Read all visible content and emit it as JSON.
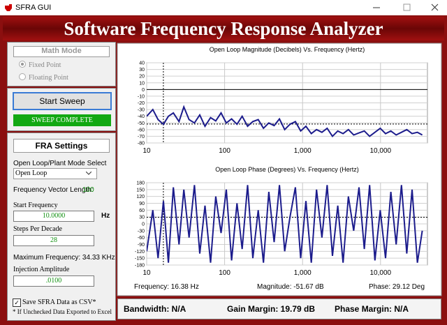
{
  "window": {
    "title": "SFRA GUI"
  },
  "header": {
    "title": "Software Frequency Response Analyzer"
  },
  "math_mode": {
    "title": "Math Mode",
    "options": [
      "Fixed Point",
      "Floating Point"
    ],
    "selected": 0
  },
  "sweep": {
    "button": "Start Sweep",
    "status": "SWEEP COMPLETE"
  },
  "fra_settings": {
    "title": "FRA Settings",
    "mode_label": "Open Loop/Plant Mode Select",
    "mode_value": "Open Loop",
    "freq_vector_label": "Frequency Vector Length:",
    "freq_vector_value": "100",
    "start_freq_label": "Start Frequency",
    "start_freq_value": "10.0000",
    "start_freq_unit": "Hz",
    "steps_label": "Steps Per Decade",
    "steps_value": "28",
    "max_freq": "Maximum Frequency: 34.33 KHz",
    "injection_label": "Injection Amplitude",
    "injection_value": ".0100",
    "save_csv_label": "Save SFRA Data as CSV*",
    "save_csv_checked": true,
    "note": "* If Unchecked Data Exported to Excel"
  },
  "chart_data": [
    {
      "type": "line",
      "title": "Open Loop Magnitude (Decibels) Vs. Frequency (Hertz)",
      "color": "#1c1c8c",
      "xlog": true,
      "grid": true,
      "x": [
        10,
        12,
        14,
        16.4,
        19,
        22,
        26,
        30,
        35,
        41,
        48,
        56,
        66,
        77,
        90,
        105,
        123,
        144,
        168,
        197,
        230,
        270,
        315,
        369,
        432,
        505,
        590,
        690,
        808,
        945,
        1105,
        1293,
        1512,
        1769,
        2069,
        2420,
        2831,
        3311,
        3873,
        4530,
        5299,
        6198,
        7250,
        8480,
        9919,
        11602,
        13571,
        15874,
        18568,
        21719,
        25405,
        29716,
        34330
      ],
      "values": [
        -40,
        -30,
        -45,
        -52,
        -40,
        -35,
        -48,
        -26,
        -45,
        -50,
        -38,
        -55,
        -42,
        -47,
        -35,
        -50,
        -44,
        -52,
        -40,
        -55,
        -48,
        -45,
        -58,
        -50,
        -54,
        -44,
        -60,
        -52,
        -48,
        -62,
        -55,
        -66,
        -60,
        -64,
        -58,
        -70,
        -62,
        -66,
        -60,
        -68,
        -65,
        -62,
        -70,
        -64,
        -58,
        -66,
        -62,
        -68,
        -64,
        -60,
        -66,
        -64,
        -68
      ],
      "xlim": [
        10,
        40000
      ],
      "ylim": [
        -80,
        40
      ],
      "xticks": [
        10,
        100,
        {
          "value": 1000,
          "label": "1,000"
        },
        {
          "value": 10000,
          "label": "10,000"
        }
      ],
      "yticks": [
        40,
        30,
        20,
        10,
        0,
        -10,
        -20,
        -30,
        -40,
        -50,
        -60,
        -70,
        -80
      ],
      "ref_line": 0,
      "cursor_x": 16.38,
      "cursor_y": -51.67
    },
    {
      "type": "line",
      "title": "Open Loop Phase (Degrees) Vs. Frequency (Hertz)",
      "color": "#1c1c8c",
      "xlog": true,
      "grid": true,
      "x": [
        10,
        12,
        14,
        16.4,
        19,
        22,
        26,
        30,
        35,
        41,
        48,
        56,
        66,
        77,
        90,
        105,
        123,
        144,
        168,
        197,
        230,
        270,
        315,
        369,
        432,
        505,
        590,
        690,
        808,
        945,
        1105,
        1293,
        1512,
        1769,
        2069,
        2420,
        2831,
        3311,
        3873,
        4530,
        5299,
        6198,
        7250,
        8480,
        9919,
        11602,
        13571,
        15874,
        18568,
        21719,
        25405,
        29716,
        34330
      ],
      "values": [
        -120,
        60,
        -150,
        100,
        -170,
        160,
        -90,
        150,
        -60,
        170,
        -130,
        80,
        -170,
        120,
        -40,
        150,
        -160,
        90,
        -110,
        170,
        -150,
        60,
        -170,
        140,
        -80,
        170,
        -120,
        30,
        160,
        -150,
        100,
        -170,
        150,
        -60,
        170,
        -140,
        80,
        -170,
        120,
        -30,
        160,
        -110,
        170,
        -160,
        60,
        -150,
        140,
        -90,
        170,
        -130,
        150,
        -170,
        -30
      ],
      "xlim": [
        10,
        40000
      ],
      "ylim": [
        -180,
        180
      ],
      "xticks": [
        10,
        100,
        {
          "value": 1000,
          "label": "1,000"
        },
        {
          "value": 10000,
          "label": "10,000"
        }
      ],
      "yticks": [
        180,
        150,
        120,
        90,
        60,
        30,
        0,
        -30,
        -60,
        -90,
        -120,
        -150,
        -180
      ],
      "cursor_x": 16.38,
      "cursor_y": 29.12
    }
  ],
  "cursor": {
    "frequency": "Frequency: 16.38 Hz",
    "magnitude": "Magnitude: -51.67 dB",
    "phase": "Phase: 29.12 Deg"
  },
  "results": {
    "bandwidth": "Bandwidth: N/A",
    "gain_margin": "Gain Margin: 19.79 dB",
    "phase_margin": "Phase Margin: N/A"
  }
}
